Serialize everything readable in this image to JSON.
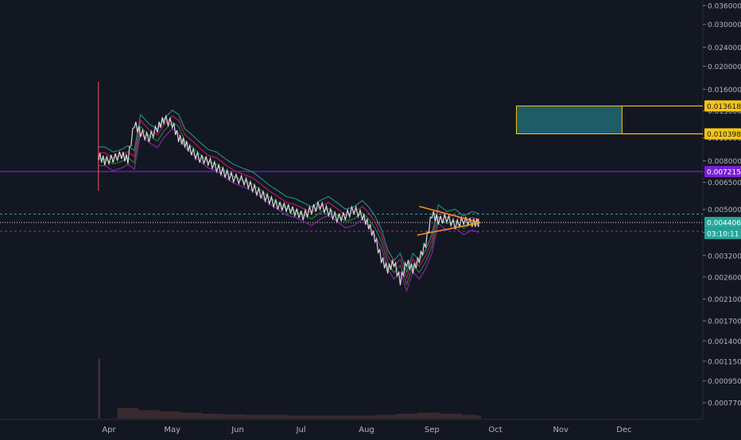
{
  "colors": {
    "background": "#131722",
    "axis_text": "#b2b5be",
    "candle": "#d8d8d8",
    "resistance": "#7b1fd6",
    "current": "#e6e6e6",
    "countdown_bg": "#26a69a",
    "target_zone_fill": "#1f5c66",
    "target_zone_border": "#f5c518",
    "triangle": "#f7931a",
    "volume": "#5a3a3a",
    "ma_red": "#c2185b",
    "ma_green": "#2e7d32",
    "band_teal": "#2a9d8f",
    "band_purple": "#9c27b0",
    "dashed_teal": "#3fa59c",
    "dashed_purple": "#9c27b0"
  },
  "chart_data": {
    "type": "line",
    "y_scale": "log",
    "ylim": [
      0.00062,
      0.04
    ],
    "xlim": [
      "2019-03-15",
      "2019-12-31"
    ],
    "y_tick_labels": [
      "0.036000",
      "0.030000",
      "0.024000",
      "0.020000",
      "0.016000",
      "0.013000",
      "0.010000",
      "0.008000",
      "0.006500",
      "0.005000",
      "0.004000",
      "0.003200",
      "0.002600",
      "0.002100",
      "0.001700",
      "0.001400",
      "0.001150",
      "0.000950",
      "0.000770"
    ],
    "x_tick_labels": [
      {
        "date": "2019-04-01",
        "label": "Apr"
      },
      {
        "date": "2019-05-01",
        "label": "May"
      },
      {
        "date": "2019-06-01",
        "label": "Jun"
      },
      {
        "date": "2019-07-01",
        "label": "Jul"
      },
      {
        "date": "2019-08-01",
        "label": "Aug"
      },
      {
        "date": "2019-09-01",
        "label": "Sep"
      },
      {
        "date": "2019-10-01",
        "label": "Oct"
      },
      {
        "date": "2019-11-01",
        "label": "Nov"
      },
      {
        "date": "2019-12-01",
        "label": "Dec"
      }
    ],
    "price_series": {
      "x": [
        "2019-03-27",
        "2019-03-30",
        "2019-04-03",
        "2019-04-07",
        "2019-04-10",
        "2019-04-13",
        "2019-04-16",
        "2019-04-20",
        "2019-04-24",
        "2019-04-27",
        "2019-05-01",
        "2019-05-04",
        "2019-05-07",
        "2019-05-10",
        "2019-05-14",
        "2019-05-18",
        "2019-05-22",
        "2019-05-26",
        "2019-05-30",
        "2019-06-04",
        "2019-06-08",
        "2019-06-12",
        "2019-06-16",
        "2019-06-20",
        "2019-06-24",
        "2019-06-28",
        "2019-07-02",
        "2019-07-06",
        "2019-07-10",
        "2019-07-14",
        "2019-07-18",
        "2019-07-22",
        "2019-07-26",
        "2019-07-30",
        "2019-08-02",
        "2019-08-05",
        "2019-08-08",
        "2019-08-11",
        "2019-08-14",
        "2019-08-17",
        "2019-08-20",
        "2019-08-23",
        "2019-08-26",
        "2019-08-29",
        "2019-09-01",
        "2019-09-04",
        "2019-09-08",
        "2019-09-12",
        "2019-09-16",
        "2019-09-20",
        "2019-09-23"
      ],
      "close": [
        0.0084,
        0.008,
        0.0082,
        0.0085,
        0.0081,
        0.0115,
        0.0105,
        0.01,
        0.011,
        0.012,
        0.0115,
        0.01,
        0.0095,
        0.0088,
        0.0082,
        0.008,
        0.0075,
        0.0071,
        0.0068,
        0.0066,
        0.0062,
        0.0058,
        0.0055,
        0.0052,
        0.0051,
        0.0049,
        0.0047,
        0.005,
        0.0052,
        0.0049,
        0.0046,
        0.0047,
        0.005,
        0.0047,
        0.0043,
        0.0038,
        0.0031,
        0.0028,
        0.003,
        0.0025,
        0.003,
        0.0028,
        0.0031,
        0.0036,
        0.0048,
        0.0045,
        0.0046,
        0.0043,
        0.0045,
        0.0044,
        0.0044
      ],
      "spike_high": {
        "date": "2019-03-27",
        "value": 0.0172
      },
      "spike_low": {
        "date": "2019-03-27",
        "value": 0.006
      }
    },
    "bands": {
      "upper_offset_pct": 9,
      "lower_offset_pct": -9
    },
    "horizontal_levels": [
      {
        "name": "resistance",
        "value": 0.007215,
        "label": "0.007215",
        "style": "solid"
      },
      {
        "name": "current-price",
        "value": 0.004406,
        "label": "0.004406",
        "style": "dotted"
      },
      {
        "name": "teal-dashed",
        "value": 0.00478,
        "style": "dashed"
      },
      {
        "name": "purple-dashed",
        "value": 0.00405,
        "style": "dashed"
      }
    ],
    "countdown_label": "03:10:11",
    "target_zone": {
      "x_start": "2019-10-11",
      "x_end": "2019-12-31",
      "inner_x_end": "2019-11-30",
      "top": 0.013618,
      "bottom": 0.010398,
      "top_label": "0.013618",
      "bottom_label": "0.010398"
    },
    "triangle": {
      "upper": [
        {
          "x": "2019-08-26",
          "y": 0.00515
        },
        {
          "x": "2019-09-24",
          "y": 0.0044
        }
      ],
      "lower": [
        {
          "x": "2019-08-25",
          "y": 0.0039
        },
        {
          "x": "2019-09-24",
          "y": 0.0044
        }
      ]
    },
    "volume": {
      "x": [
        "2019-03-27",
        "2019-04-05",
        "2019-04-15",
        "2019-04-25",
        "2019-05-05",
        "2019-05-15",
        "2019-05-25",
        "2019-06-05",
        "2019-06-15",
        "2019-06-25",
        "2019-07-05",
        "2019-07-15",
        "2019-07-25",
        "2019-08-05",
        "2019-08-15",
        "2019-08-25",
        "2019-09-05",
        "2019-09-15",
        "2019-09-22"
      ],
      "values": [
        100,
        18,
        14,
        12,
        10,
        8,
        7,
        6,
        6,
        5,
        5,
        5,
        5,
        6,
        8,
        10,
        8,
        6,
        5
      ]
    }
  }
}
